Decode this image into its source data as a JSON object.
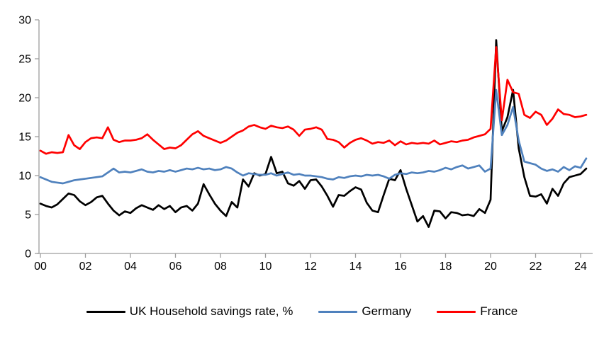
{
  "chart_data": {
    "type": "line",
    "title": "",
    "xlabel": "",
    "ylabel": "",
    "ylim": [
      0,
      30
    ],
    "grid": false,
    "legend_position": "bottom",
    "x_start_year": 2000,
    "x_step_years": 0.25,
    "x_tick_labels": [
      "00",
      "02",
      "04",
      "06",
      "08",
      "10",
      "12",
      "14",
      "16",
      "18",
      "20",
      "22",
      "24"
    ],
    "y_ticks": [
      0,
      5,
      10,
      15,
      20,
      25,
      30
    ],
    "axis_color": "#9d9d9d",
    "series": [
      {
        "name": "UK Household savings rate, %",
        "color": "#000000",
        "values": [
          6.4,
          6.1,
          5.9,
          6.3,
          7.0,
          7.7,
          7.5,
          6.7,
          6.2,
          6.6,
          7.2,
          7.4,
          6.4,
          5.5,
          4.9,
          5.4,
          5.2,
          5.8,
          6.2,
          5.9,
          5.6,
          6.2,
          5.7,
          6.1,
          5.3,
          5.9,
          6.1,
          5.5,
          6.4,
          8.9,
          7.6,
          6.4,
          5.5,
          4.8,
          6.6,
          5.9,
          9.5,
          8.6,
          10.3,
          10.0,
          10.2,
          12.4,
          10.3,
          10.5,
          9.0,
          8.7,
          9.3,
          8.3,
          9.4,
          9.5,
          8.6,
          7.4,
          6.0,
          7.5,
          7.4,
          8.0,
          8.5,
          8.2,
          6.5,
          5.5,
          5.3,
          7.5,
          9.6,
          9.4,
          10.7,
          8.3,
          6.2,
          4.1,
          4.8,
          3.4,
          5.5,
          5.4,
          4.5,
          5.3,
          5.2,
          4.9,
          5.0,
          4.8,
          5.7,
          5.2,
          6.9,
          27.4,
          15.7,
          17.5,
          21.0,
          13.5,
          9.8,
          7.4,
          7.3,
          7.6,
          6.4,
          8.3,
          7.4,
          9.0,
          9.8,
          10.0,
          10.2,
          10.9
        ]
      },
      {
        "name": "Germany",
        "color": "#4F81BD",
        "values": [
          9.8,
          9.5,
          9.2,
          9.1,
          9.0,
          9.2,
          9.4,
          9.5,
          9.6,
          9.7,
          9.8,
          9.9,
          10.4,
          10.9,
          10.4,
          10.5,
          10.4,
          10.6,
          10.8,
          10.5,
          10.4,
          10.6,
          10.5,
          10.7,
          10.5,
          10.7,
          10.9,
          10.8,
          11.0,
          10.8,
          10.9,
          10.7,
          10.8,
          11.1,
          10.9,
          10.4,
          10.0,
          10.3,
          10.2,
          10.1,
          10.1,
          10.3,
          10.0,
          10.2,
          10.4,
          10.1,
          10.2,
          10.0,
          10.0,
          9.9,
          9.8,
          9.6,
          9.5,
          9.8,
          9.7,
          9.9,
          10.0,
          9.9,
          10.1,
          10.0,
          10.1,
          9.9,
          9.6,
          10.1,
          10.3,
          10.2,
          10.4,
          10.3,
          10.4,
          10.6,
          10.5,
          10.7,
          11.0,
          10.8,
          11.1,
          11.3,
          10.9,
          11.1,
          11.3,
          10.5,
          10.9,
          21.0,
          15.2,
          16.5,
          18.8,
          14.5,
          11.8,
          11.6,
          11.4,
          10.9,
          10.6,
          10.8,
          10.5,
          11.1,
          10.7,
          11.2,
          11.0,
          12.2
        ]
      },
      {
        "name": "France",
        "color": "#FF0000",
        "values": [
          13.2,
          12.8,
          13.0,
          12.9,
          13.0,
          15.2,
          13.9,
          13.4,
          14.3,
          14.8,
          14.9,
          14.8,
          16.2,
          14.6,
          14.3,
          14.5,
          14.5,
          14.6,
          14.8,
          15.3,
          14.6,
          14.0,
          13.4,
          13.6,
          13.5,
          13.9,
          14.6,
          15.3,
          15.7,
          15.1,
          14.8,
          14.5,
          14.2,
          14.5,
          15.0,
          15.5,
          15.8,
          16.3,
          16.5,
          16.2,
          16.0,
          16.4,
          16.2,
          16.1,
          16.3,
          15.9,
          15.1,
          15.9,
          16.0,
          16.2,
          15.9,
          14.7,
          14.6,
          14.3,
          13.6,
          14.2,
          14.6,
          14.8,
          14.5,
          14.1,
          14.3,
          14.2,
          14.5,
          13.9,
          14.4,
          14.0,
          14.2,
          14.1,
          14.2,
          14.1,
          14.5,
          14.0,
          14.2,
          14.4,
          14.3,
          14.5,
          14.6,
          14.9,
          15.1,
          15.3,
          16.0,
          26.5,
          17.1,
          22.3,
          20.7,
          20.5,
          17.8,
          17.4,
          18.2,
          17.8,
          16.5,
          17.3,
          18.5,
          17.9,
          17.8,
          17.5,
          17.6,
          17.8
        ]
      }
    ]
  },
  "legend": {
    "uk_label": "UK Household savings rate, %",
    "germany_label": "Germany",
    "france_label": "France"
  }
}
